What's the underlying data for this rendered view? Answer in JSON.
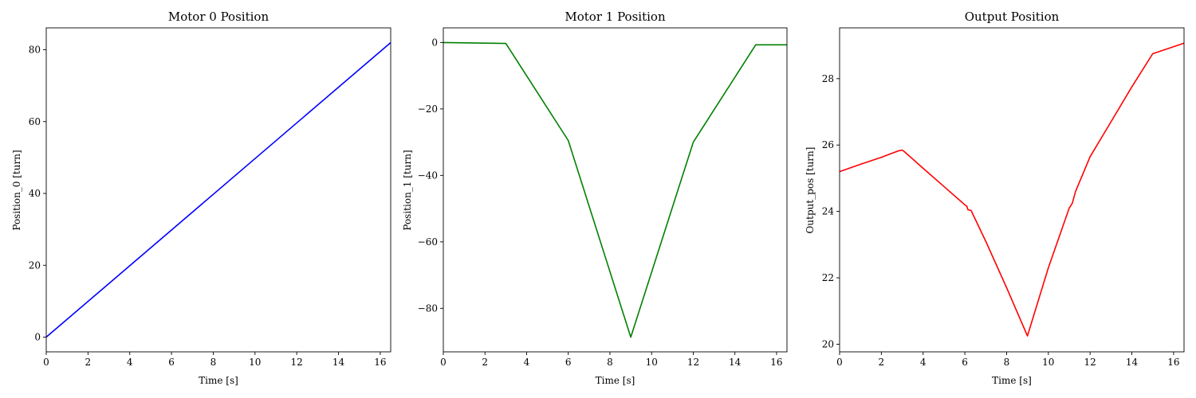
{
  "chart_data": [
    {
      "type": "line",
      "title": "Motor 0 Position",
      "xlabel": "Time [s]",
      "ylabel": "Position_0 [turn]",
      "xlim": [
        0,
        16.5
      ],
      "ylim": [
        -4.1,
        86.1
      ],
      "xticks": [
        0,
        2,
        4,
        6,
        8,
        10,
        12,
        14,
        16
      ],
      "yticks": [
        0,
        20,
        40,
        60,
        80
      ],
      "grid": false,
      "series": [
        {
          "color": "#0000ff",
          "x": [
            0,
            16.5
          ],
          "y": [
            0,
            82
          ]
        }
      ]
    },
    {
      "type": "line",
      "title": "Motor 1 Position",
      "xlabel": "Time [s]",
      "ylabel": "Position_1 [turn]",
      "xlim": [
        0,
        16.5
      ],
      "ylim": [
        -93.1,
        4.4
      ],
      "xticks": [
        0,
        2,
        4,
        6,
        8,
        10,
        12,
        14,
        16
      ],
      "yticks": [
        0,
        -20,
        -40,
        -60,
        -80
      ],
      "grid": false,
      "series": [
        {
          "color": "#008000",
          "x": [
            0,
            3,
            6,
            9,
            12,
            15,
            16.5
          ],
          "y": [
            0,
            -0.3,
            -29.5,
            -88.7,
            -30,
            -0.7,
            -0.7
          ]
        }
      ]
    },
    {
      "type": "line",
      "title": "Output Position",
      "xlabel": "Time [s]",
      "ylabel": "Output_pos [turn]",
      "xlim": [
        0,
        16.5
      ],
      "ylim": [
        19.77,
        29.53
      ],
      "xticks": [
        0,
        2,
        4,
        6,
        8,
        10,
        12,
        14,
        16
      ],
      "yticks": [
        20,
        22,
        24,
        26,
        28
      ],
      "grid": false,
      "series": [
        {
          "color": "#ff0000",
          "x": [
            0,
            1,
            2,
            2.5,
            2.8,
            3.0,
            3.1,
            4,
            5,
            6.0,
            6.1,
            6.15,
            6.3,
            7,
            8,
            9.0,
            10,
            11,
            11.15,
            11.3,
            12,
            13,
            14,
            15,
            16.5
          ],
          "y": [
            25.2,
            25.42,
            25.63,
            25.75,
            25.82,
            25.85,
            25.8,
            25.3,
            24.75,
            24.2,
            24.15,
            24.05,
            24.03,
            23.1,
            21.7,
            20.25,
            22.3,
            24.1,
            24.25,
            24.6,
            25.65,
            26.7,
            27.75,
            28.75,
            29.07
          ]
        }
      ]
    }
  ]
}
